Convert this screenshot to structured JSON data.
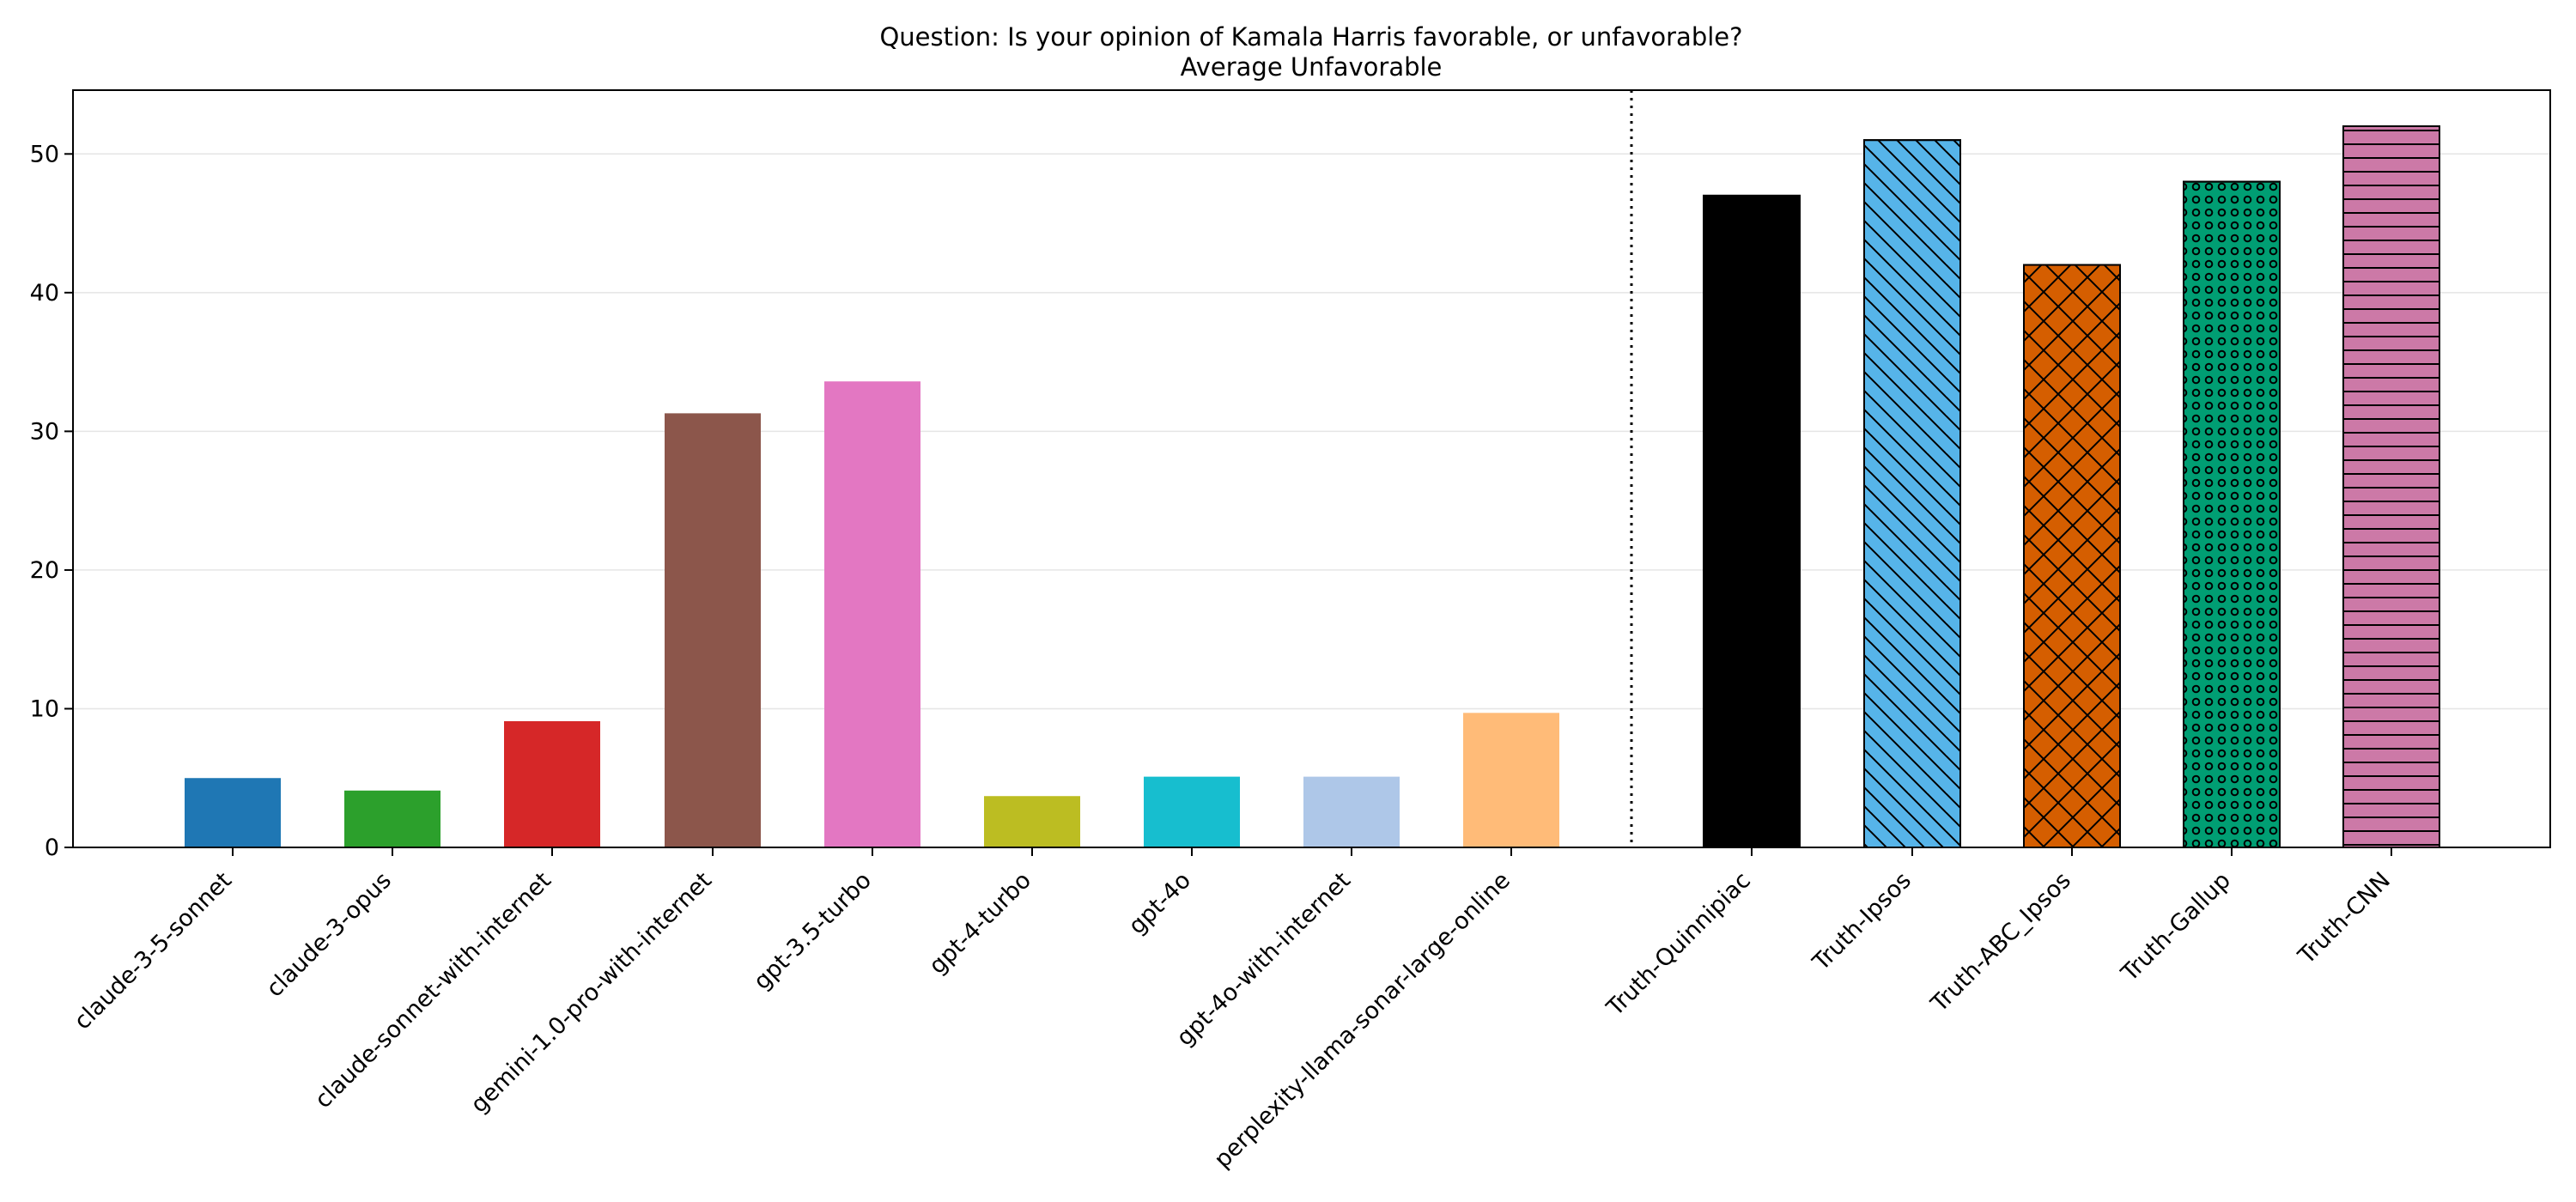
{
  "chart_data": {
    "type": "bar",
    "title": [
      "Question: Is your opinion of Kamala Harris favorable, or unfavorable?",
      "Average Unfavorable"
    ],
    "xlabel": "",
    "ylabel": "",
    "ylim": [
      0,
      54.6
    ],
    "yticks": [
      0,
      10,
      20,
      30,
      40,
      50
    ],
    "grid": "horizontal",
    "separator_after_index": 8,
    "categories": [
      "claude-3-5-sonnet",
      "claude-3-opus",
      "claude-sonnet-with-internet",
      "gemini-1.0-pro-with-internet",
      "gpt-3.5-turbo",
      "gpt-4-turbo",
      "gpt-4o",
      "gpt-4o-with-internet",
      "perplexity-llama-sonar-large-online",
      "Truth-Quinnipiac",
      "Truth-Ipsos",
      "Truth-ABC_Ipsos",
      "Truth-Gallup",
      "Truth-CNN"
    ],
    "values": [
      5.0,
      4.1,
      9.1,
      31.3,
      33.6,
      3.7,
      5.1,
      5.1,
      9.7,
      47,
      51,
      42,
      48,
      52
    ],
    "colors": [
      "#1f77b4",
      "#2ca02c",
      "#d62728",
      "#8c564b",
      "#e377c2",
      "#bcbd22",
      "#17becf",
      "#aec7e8",
      "#ffbb78",
      "#000000",
      "#56b4e9",
      "#d55e00",
      "#009e73",
      "#cc79a7"
    ],
    "patterns": [
      "none",
      "none",
      "none",
      "none",
      "none",
      "none",
      "none",
      "none",
      "none",
      "none",
      "diagonal",
      "crosshatch",
      "dots",
      "horizontal"
    ]
  }
}
